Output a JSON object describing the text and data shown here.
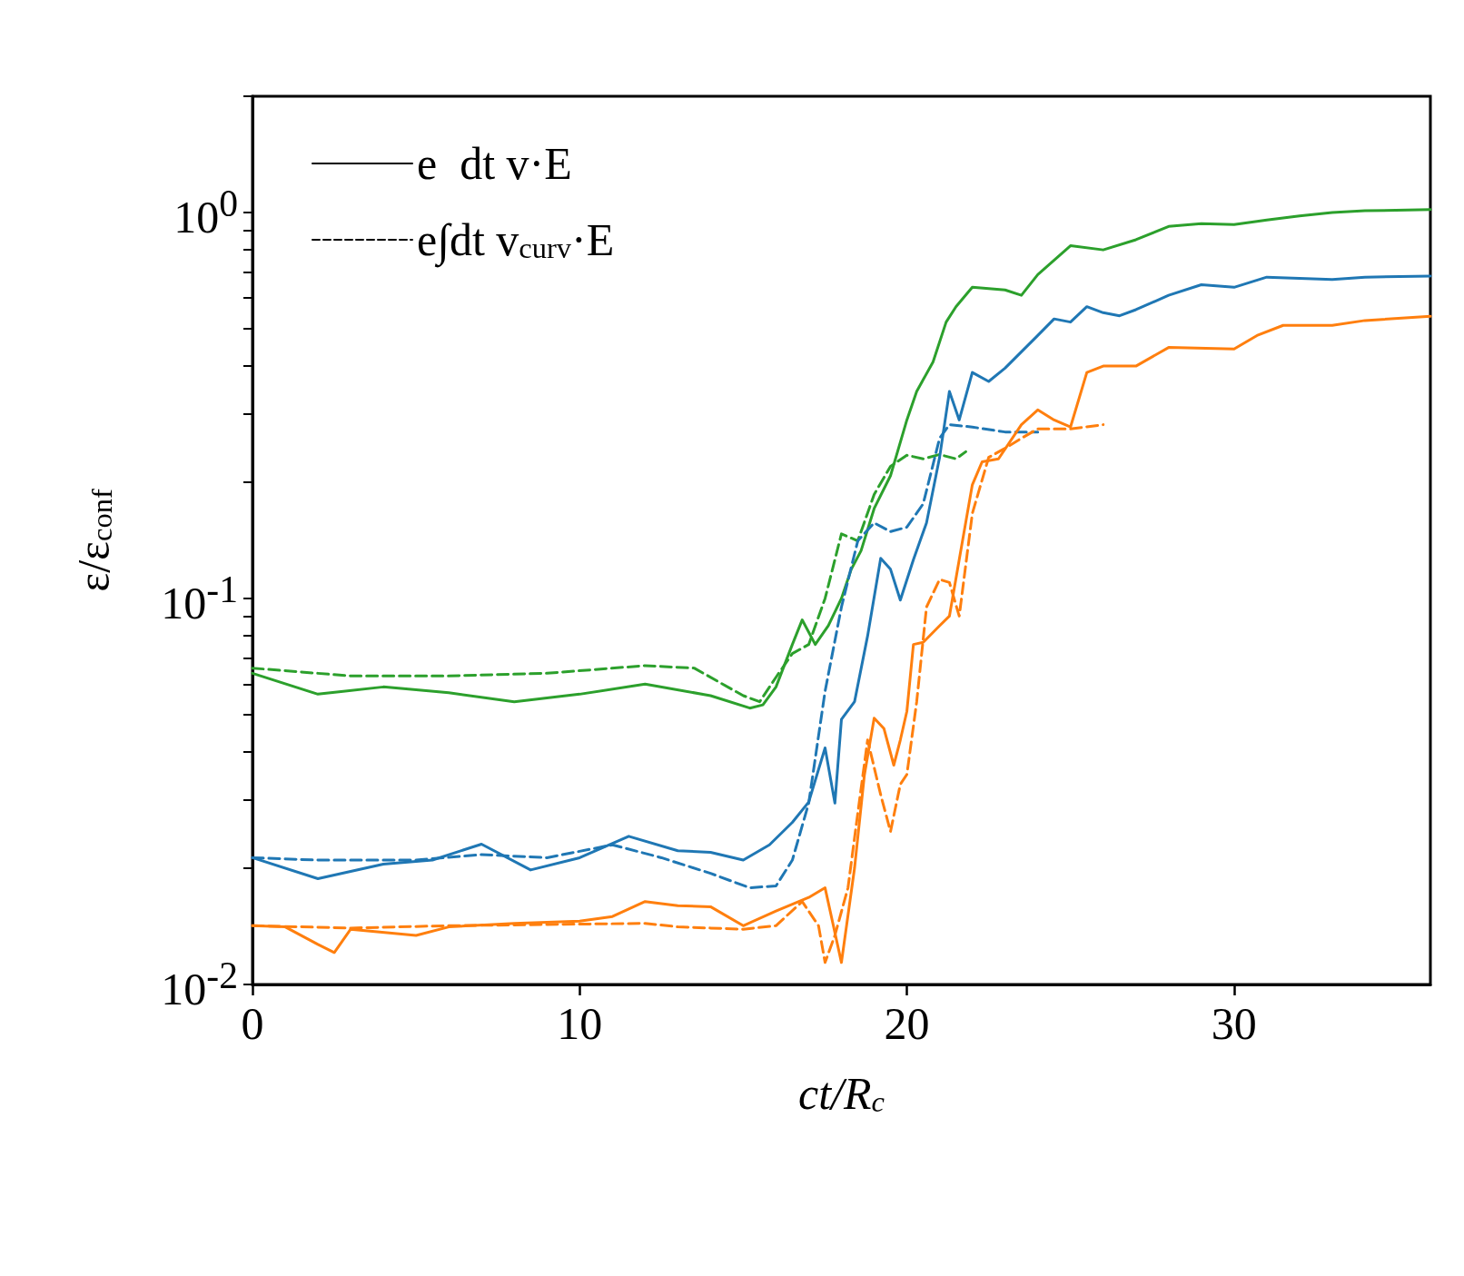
{
  "chart_data": {
    "type": "line",
    "xlabel": "ct/R$_{c}$",
    "ylabel": "ε/ε$_{conf}$",
    "log": "y",
    "legend": "top left",
    "marker": "none",
    "xlim": [
      0,
      36
    ],
    "xticks": [
      0,
      10,
      20,
      30
    ],
    "ylim": [
      0.01,
      2
    ],
    "yticks": [
      {
        "value": 0.01,
        "label": "10$^{-2}$"
      },
      {
        "value": 0.02,
        "label": null
      },
      {
        "value": 0.03,
        "label": null
      },
      {
        "value": 0.04,
        "label": null
      },
      {
        "value": 0.05,
        "label": null
      },
      {
        "value": 0.06,
        "label": null
      },
      {
        "value": 0.07,
        "label": null
      },
      {
        "value": 0.08,
        "label": null
      },
      {
        "value": 0.09,
        "label": null
      },
      {
        "value": 0.1,
        "label": "10$^{-1}$"
      },
      {
        "value": 0.2,
        "label": null
      },
      {
        "value": 0.3,
        "label": null
      },
      {
        "value": 0.4,
        "label": null
      },
      {
        "value": 0.5,
        "label": null
      },
      {
        "value": 0.6,
        "label": null
      },
      {
        "value": 0.7,
        "label": null
      },
      {
        "value": 0.8,
        "label": null
      },
      {
        "value": 0.9,
        "label": null
      },
      {
        "value": 1,
        "label": "10$^{0}$"
      },
      {
        "value": 2,
        "label": null
      }
    ],
    "series": [
      {
        "name": "e  dt v·E",
        "color": "#000000",
        "line_style": "solid"
      },
      {
        "name": "e∫dt v$_{curv}$·E",
        "color": "#000000",
        "line_style": "dashed"
      },
      {
        "color": "#2ca02c",
        "line_style": "solid",
        "x": [
          0,
          2,
          4,
          6,
          8,
          10,
          12,
          14,
          15.2,
          15.6,
          16,
          16.5,
          16.8,
          17.2,
          17.6,
          18,
          18.3,
          18.6,
          19,
          19.5,
          20,
          20.3,
          20.8,
          21.2,
          21.5,
          22,
          23,
          23.5,
          24,
          25,
          26,
          27,
          28,
          29,
          30,
          31,
          32,
          33,
          34,
          36
        ],
        "values": [
          0.064,
          0.0565,
          0.059,
          0.057,
          0.054,
          0.0565,
          0.06,
          0.056,
          0.052,
          0.053,
          0.059,
          0.076,
          0.088,
          0.076,
          0.085,
          0.1,
          0.119,
          0.133,
          0.171,
          0.208,
          0.29,
          0.344,
          0.41,
          0.52,
          0.57,
          0.64,
          0.63,
          0.61,
          0.69,
          0.82,
          0.8,
          0.85,
          0.92,
          0.935,
          0.93,
          0.956,
          0.98,
          1,
          1.01,
          1.017
        ]
      },
      {
        "color": "#2ca02c",
        "line_style": "dashed",
        "x": [
          0,
          3,
          6,
          9,
          12,
          13.5,
          15,
          15.5,
          16,
          16.5,
          17,
          17.5,
          18,
          18.5,
          19,
          19.5,
          20,
          20.5,
          21,
          21.5,
          21.8
        ],
        "values": [
          0.066,
          0.063,
          0.063,
          0.064,
          0.067,
          0.066,
          0.056,
          0.054,
          0.0625,
          0.072,
          0.076,
          0.1,
          0.147,
          0.141,
          0.186,
          0.22,
          0.235,
          0.23,
          0.236,
          0.23,
          0.24
        ]
      },
      {
        "color": "#1f77b4",
        "line_style": "solid",
        "x": [
          0,
          2,
          4,
          5.5,
          7,
          8.5,
          10,
          11.5,
          13,
          14,
          15,
          15.8,
          16.5,
          17,
          17.5,
          17.8,
          18,
          18.4,
          18.8,
          19.2,
          19.5,
          19.8,
          20.2,
          20.6,
          21,
          21.3,
          21.6,
          22,
          22.5,
          23,
          24,
          24.5,
          25,
          25.5,
          26,
          26.5,
          27,
          28,
          29,
          30,
          31,
          33,
          34,
          36
        ],
        "values": [
          0.0213,
          0.0188,
          0.0205,
          0.021,
          0.0231,
          0.0198,
          0.0213,
          0.0242,
          0.0222,
          0.022,
          0.021,
          0.023,
          0.0263,
          0.0297,
          0.041,
          0.0295,
          0.0486,
          0.054,
          0.08,
          0.127,
          0.119,
          0.099,
          0.126,
          0.157,
          0.232,
          0.344,
          0.29,
          0.385,
          0.365,
          0.395,
          0.48,
          0.53,
          0.52,
          0.57,
          0.55,
          0.54,
          0.56,
          0.61,
          0.65,
          0.64,
          0.68,
          0.67,
          0.68,
          0.684
        ]
      },
      {
        "color": "#1f77b4",
        "line_style": "dashed",
        "x": [
          0,
          2,
          5,
          7,
          9,
          11,
          12.5,
          14,
          15.2,
          16,
          16.5,
          17,
          17.5,
          18,
          18.5,
          19,
          19.5,
          20,
          20.5,
          21,
          21.3,
          22,
          23,
          24
        ],
        "values": [
          0.0213,
          0.021,
          0.021,
          0.0217,
          0.0213,
          0.023,
          0.0213,
          0.0194,
          0.0178,
          0.018,
          0.021,
          0.0295,
          0.0575,
          0.095,
          0.141,
          0.157,
          0.149,
          0.153,
          0.176,
          0.26,
          0.282,
          0.278,
          0.27,
          0.27
        ]
      },
      {
        "color": "#ff7f0e",
        "line_style": "solid",
        "x": [
          0,
          1,
          2,
          2.5,
          3,
          5,
          6,
          8,
          10,
          11,
          12,
          13,
          14,
          15,
          16,
          17,
          17.5,
          18,
          18.4,
          18.7,
          19,
          19.3,
          19.6,
          19.8,
          20,
          20.2,
          20.5,
          21,
          21.3,
          21.6,
          22,
          22.3,
          22.8,
          23.5,
          24,
          24.5,
          25,
          25.5,
          26,
          26.5,
          27,
          28,
          30,
          30.7,
          31.5,
          33,
          34,
          36
        ],
        "values": [
          0.0142,
          0.0141,
          0.0127,
          0.0121,
          0.0139,
          0.0134,
          0.0141,
          0.0144,
          0.0146,
          0.015,
          0.0164,
          0.016,
          0.0159,
          0.0142,
          0.0155,
          0.0168,
          0.0178,
          0.0114,
          0.02,
          0.0348,
          0.049,
          0.046,
          0.037,
          0.043,
          0.051,
          0.076,
          0.077,
          0.085,
          0.09,
          0.126,
          0.197,
          0.226,
          0.23,
          0.282,
          0.308,
          0.29,
          0.278,
          0.385,
          0.4,
          0.4,
          0.4,
          0.447,
          0.443,
          0.48,
          0.51,
          0.51,
          0.525,
          0.538
        ]
      },
      {
        "color": "#ff7f0e",
        "line_style": "dashed",
        "x": [
          0,
          3,
          6,
          9,
          12,
          13,
          14,
          15,
          16,
          16.8,
          17.3,
          17.5,
          17.8,
          18.2,
          18.5,
          18.8,
          19.2,
          19.5,
          19.8,
          20,
          20.3,
          20.6,
          21,
          21.3,
          21.6,
          22,
          22.5,
          23,
          23.5,
          24,
          25,
          26
        ],
        "values": [
          0.0142,
          0.014,
          0.0142,
          0.0143,
          0.0144,
          0.0141,
          0.014,
          0.0139,
          0.0142,
          0.0164,
          0.0142,
          0.0114,
          0.0134,
          0.0178,
          0.0278,
          0.043,
          0.031,
          0.0249,
          0.033,
          0.035,
          0.054,
          0.095,
          0.112,
          0.11,
          0.09,
          0.166,
          0.232,
          0.245,
          0.26,
          0.275,
          0.275,
          0.282
        ]
      }
    ]
  }
}
